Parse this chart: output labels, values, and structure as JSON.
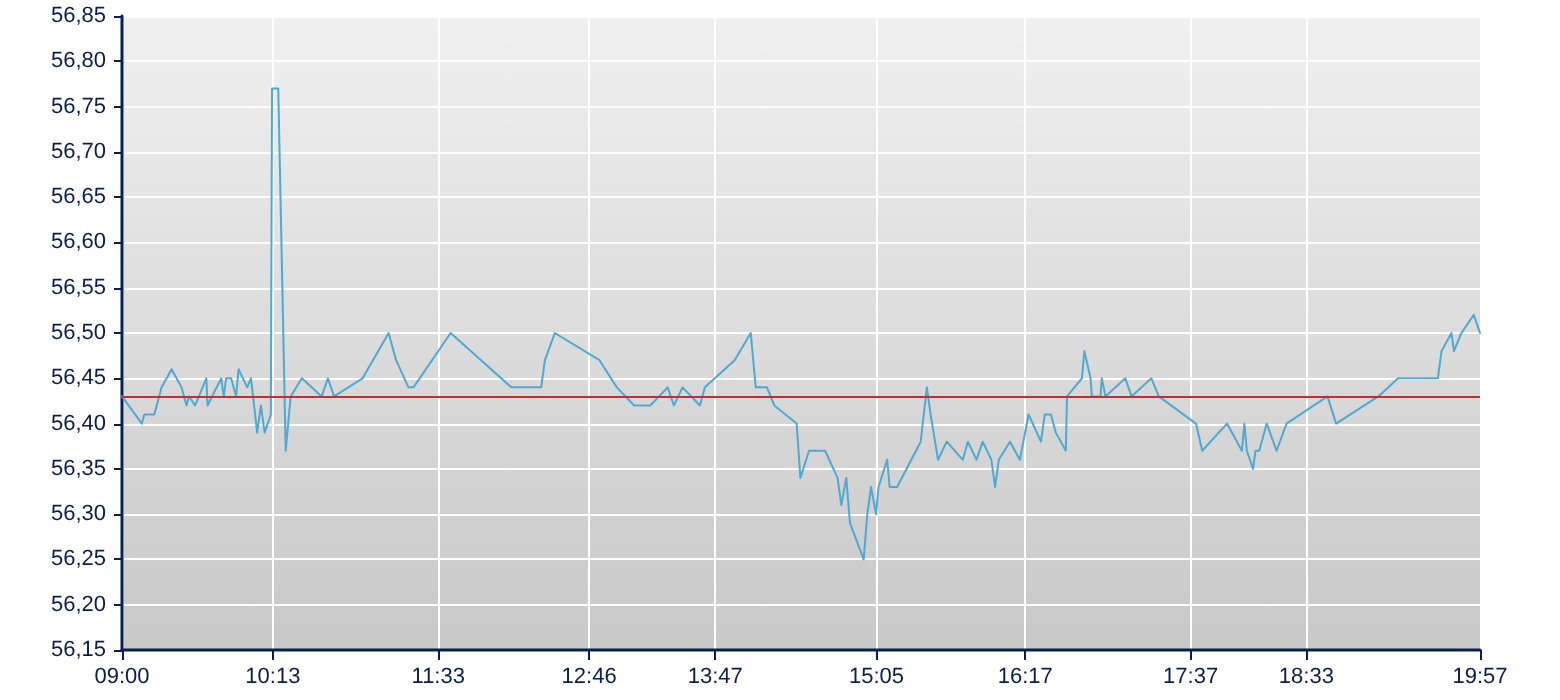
{
  "chart_data": {
    "type": "line",
    "x": [
      9.0,
      9.16,
      9.18,
      9.26,
      9.32,
      9.4,
      9.48,
      9.52,
      9.54,
      9.59,
      9.68,
      9.69,
      9.8,
      9.82,
      9.84,
      9.88,
      9.92,
      9.94,
      10.01,
      10.04,
      10.09,
      10.12,
      10.15,
      10.2,
      10.21,
      10.26,
      10.32,
      10.36,
      10.45,
      10.61,
      10.66,
      10.71,
      10.94,
      11.15,
      11.21,
      11.31,
      11.35,
      11.65,
      12.14,
      12.38,
      12.41,
      12.49,
      12.85,
      12.99,
      13.13,
      13.26,
      13.4,
      13.45,
      13.52,
      13.66,
      13.7,
      13.94,
      14.07,
      14.11,
      14.2,
      14.26,
      14.44,
      14.47,
      14.54,
      14.67,
      14.77,
      14.8,
      14.84,
      14.87,
      14.98,
      15.01,
      15.04,
      15.08,
      15.1,
      15.17,
      15.19,
      15.25,
      15.44,
      15.49,
      15.52,
      15.58,
      15.65,
      15.78,
      15.82,
      15.89,
      15.94,
      16.01,
      16.04,
      16.07,
      16.16,
      16.24,
      16.31,
      16.41,
      16.44,
      16.49,
      16.53,
      16.61,
      16.62,
      16.74,
      16.76,
      16.81,
      16.82,
      16.89,
      16.9,
      16.93,
      17.09,
      17.14,
      17.3,
      17.36,
      17.66,
      17.71,
      17.91,
      18.03,
      18.05,
      18.07,
      18.12,
      18.14,
      18.17,
      18.23,
      18.31,
      18.39,
      18.72,
      18.79,
      19.13,
      19.29,
      19.61,
      19.64,
      19.72,
      19.74,
      19.8,
      19.9,
      19.95
    ],
    "series": [
      {
        "color": "#4fa9d2",
        "values": [
          56.43,
          56.4,
          56.41,
          56.41,
          56.44,
          56.46,
          56.44,
          56.42,
          56.43,
          56.42,
          56.45,
          56.42,
          56.45,
          56.43,
          56.45,
          56.45,
          56.43,
          56.46,
          56.44,
          56.45,
          56.39,
          56.42,
          56.39,
          56.41,
          56.77,
          56.77,
          56.37,
          56.43,
          56.45,
          56.43,
          56.45,
          56.43,
          56.45,
          56.5,
          56.47,
          56.44,
          56.44,
          56.5,
          56.44,
          56.44,
          56.47,
          56.5,
          56.47,
          56.44,
          56.42,
          56.42,
          56.44,
          56.42,
          56.44,
          56.42,
          56.44,
          56.47,
          56.5,
          56.44,
          56.44,
          56.42,
          56.4,
          56.34,
          56.37,
          56.37,
          56.34,
          56.31,
          56.34,
          56.29,
          56.25,
          56.3,
          56.33,
          56.3,
          56.33,
          56.36,
          56.33,
          56.33,
          56.38,
          56.44,
          56.41,
          56.36,
          56.38,
          56.36,
          56.38,
          56.36,
          56.38,
          56.36,
          56.33,
          56.36,
          56.38,
          56.36,
          56.41,
          56.38,
          56.41,
          56.41,
          56.39,
          56.37,
          56.43,
          56.45,
          56.48,
          56.45,
          56.43,
          56.43,
          56.45,
          56.43,
          56.45,
          56.43,
          56.45,
          56.43,
          56.4,
          56.37,
          56.4,
          56.37,
          56.4,
          56.37,
          56.35,
          56.37,
          56.37,
          56.4,
          56.37,
          56.4,
          56.43,
          56.4,
          56.43,
          56.45,
          56.45,
          56.48,
          56.5,
          56.48,
          56.5,
          56.52,
          56.5
        ]
      }
    ],
    "xlim": [
      9.0,
      19.95
    ],
    "xticks": [
      {
        "value": 9.0,
        "label": "09:00"
      },
      {
        "value": 10.2167,
        "label": "10:13"
      },
      {
        "value": 11.55,
        "label": "11:33"
      },
      {
        "value": 12.7667,
        "label": "12:46"
      },
      {
        "value": 13.7833,
        "label": "13:47"
      },
      {
        "value": 15.0833,
        "label": "15:05"
      },
      {
        "value": 16.2833,
        "label": "16:17"
      },
      {
        "value": 17.6167,
        "label": "17:37"
      },
      {
        "value": 18.55,
        "label": "18:33"
      },
      {
        "value": 19.95,
        "label": "19:57"
      }
    ],
    "ylim": [
      56.15,
      56.85
    ],
    "yticks": [
      {
        "value": 56.15,
        "label": "56,15"
      },
      {
        "value": 56.2,
        "label": "56,20"
      },
      {
        "value": 56.25,
        "label": "56,25"
      },
      {
        "value": 56.3,
        "label": "56,30"
      },
      {
        "value": 56.35,
        "label": "56,35"
      },
      {
        "value": 56.4,
        "label": "56,40"
      },
      {
        "value": 56.45,
        "label": "56,45"
      },
      {
        "value": 56.5,
        "label": "56,50"
      },
      {
        "value": 56.55,
        "label": "56,55"
      },
      {
        "value": 56.6,
        "label": "56,60"
      },
      {
        "value": 56.65,
        "label": "56,65"
      },
      {
        "value": 56.7,
        "label": "56,70"
      },
      {
        "value": 56.75,
        "label": "56,75"
      },
      {
        "value": 56.8,
        "label": "56,80"
      },
      {
        "value": 56.85,
        "label": "56,85"
      }
    ],
    "ref_lines": [
      {
        "axis": "y",
        "value": 56.43,
        "color": "#c03030"
      }
    ],
    "grid": true,
    "marker": "none",
    "line_style": "solid"
  }
}
